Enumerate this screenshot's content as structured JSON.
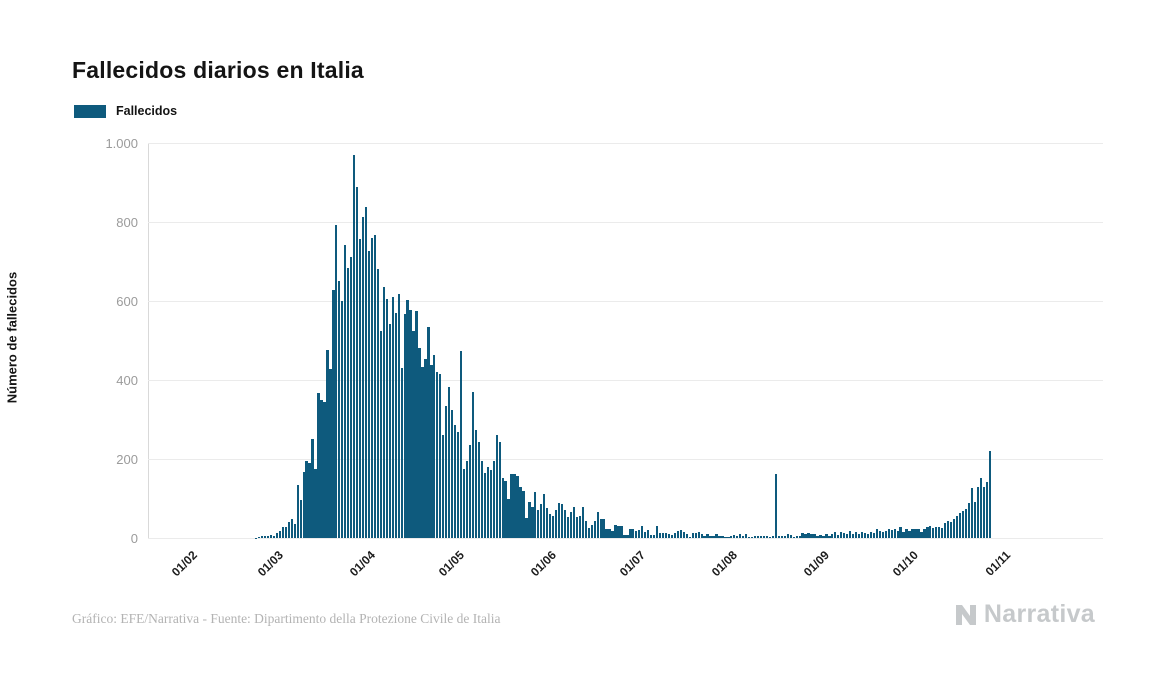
{
  "page": {
    "title": "Fallecidos diarios en Italia",
    "footer_credit": "Gráfico: EFE/Narrativa - Fuente: Dipartimento della Protezione Civile de Italia",
    "brand_name": "Narrativa"
  },
  "legend": {
    "items": [
      {
        "label": "Fallecidos",
        "color": "#0e5a7d"
      }
    ]
  },
  "chart_data": {
    "type": "bar",
    "title": "Fallecidos diarios en Italia",
    "xlabel": "",
    "ylabel": "Número de fallecidos",
    "ylim": [
      0,
      1000
    ],
    "grid": true,
    "legend_position": "top-left",
    "bar_color": "#0e5a7d",
    "y_ticks": [
      {
        "value": 0,
        "label": "0"
      },
      {
        "value": 200,
        "label": "200"
      },
      {
        "value": 400,
        "label": "400"
      },
      {
        "value": 600,
        "label": "600"
      },
      {
        "value": 800,
        "label": "800"
      },
      {
        "value": 1000,
        "label": "1.000"
      }
    ],
    "x_ticks": [
      {
        "label": "01/02",
        "day_offset": -22
      },
      {
        "label": "01/03",
        "day_offset": 7
      },
      {
        "label": "01/04",
        "day_offset": 38
      },
      {
        "label": "01/05",
        "day_offset": 68
      },
      {
        "label": "01/06",
        "day_offset": 99
      },
      {
        "label": "01/07",
        "day_offset": 129
      },
      {
        "label": "01/08",
        "day_offset": 160
      },
      {
        "label": "01/09",
        "day_offset": 191
      },
      {
        "label": "01/10",
        "day_offset": 221
      },
      {
        "label": "01/11",
        "day_offset": 252
      }
    ],
    "series": [
      {
        "name": "Fallecidos",
        "start_label": "23/02",
        "frequency": "daily",
        "values": [
          1,
          3,
          4,
          5,
          4,
          8,
          4,
          12,
          18,
          27,
          28,
          41,
          49,
          36,
          133,
          97,
          168,
          196,
          189,
          250,
          175,
          368,
          349,
          345,
          475,
          427,
          627,
          793,
          651,
          601,
          743,
          683,
          712,
          969,
          889,
          756,
          812,
          837,
          727,
          760,
          766,
          681,
          525,
          636,
          604,
          542,
          610,
          570,
          619,
          431,
          566,
          602,
          578,
          525,
          575,
          482,
          433,
          454,
          534,
          437,
          464,
          420,
          415,
          260,
          333,
          382,
          323,
          285,
          269,
          474,
          174,
          195,
          236,
          369,
          274,
          243,
          194,
          165,
          179,
          172,
          195,
          262,
          242,
          153,
          145,
          99,
          162,
          161,
          156,
          130,
          119,
          50,
          92,
          78,
          117,
          70,
          87,
          111,
          75,
          60,
          55,
          71,
          88,
          85,
          72,
          53,
          65,
          79,
          53,
          56,
          78,
          44,
          26,
          34,
          43,
          66,
          47,
          49,
          24,
          23,
          18,
          34,
          30,
          30,
          8,
          8,
          23,
          23,
          19,
          21,
          30,
          15,
          21,
          8,
          8,
          30,
          12,
          12,
          12,
          9,
          7,
          13,
          17,
          20,
          16,
          11,
          3,
          13,
          13,
          15,
          10,
          6,
          10,
          5,
          5,
          11,
          5,
          6,
          3,
          3,
          5,
          8,
          5,
          10,
          6,
          10,
          3,
          2,
          6,
          4,
          6,
          6,
          6,
          3,
          4,
          162,
          4,
          5,
          6,
          9,
          7,
          3,
          4,
          4,
          13,
          10,
          13,
          9,
          9,
          4,
          8,
          6,
          10,
          6,
          10,
          16,
          8,
          14,
          12,
          10,
          18,
          10,
          16,
          9,
          14,
          12,
          11,
          15,
          13,
          24,
          17,
          14,
          19,
          23,
          21,
          23,
          17,
          28,
          16,
          23,
          19,
          23,
          24,
          23,
          16,
          22,
          28,
          31,
          26,
          28,
          27,
          26,
          39,
          43,
          41,
          47,
          55,
          63,
          69,
          73,
          89,
          127,
          91,
          130,
          151,
          128,
          141,
          221
        ]
      }
    ]
  }
}
